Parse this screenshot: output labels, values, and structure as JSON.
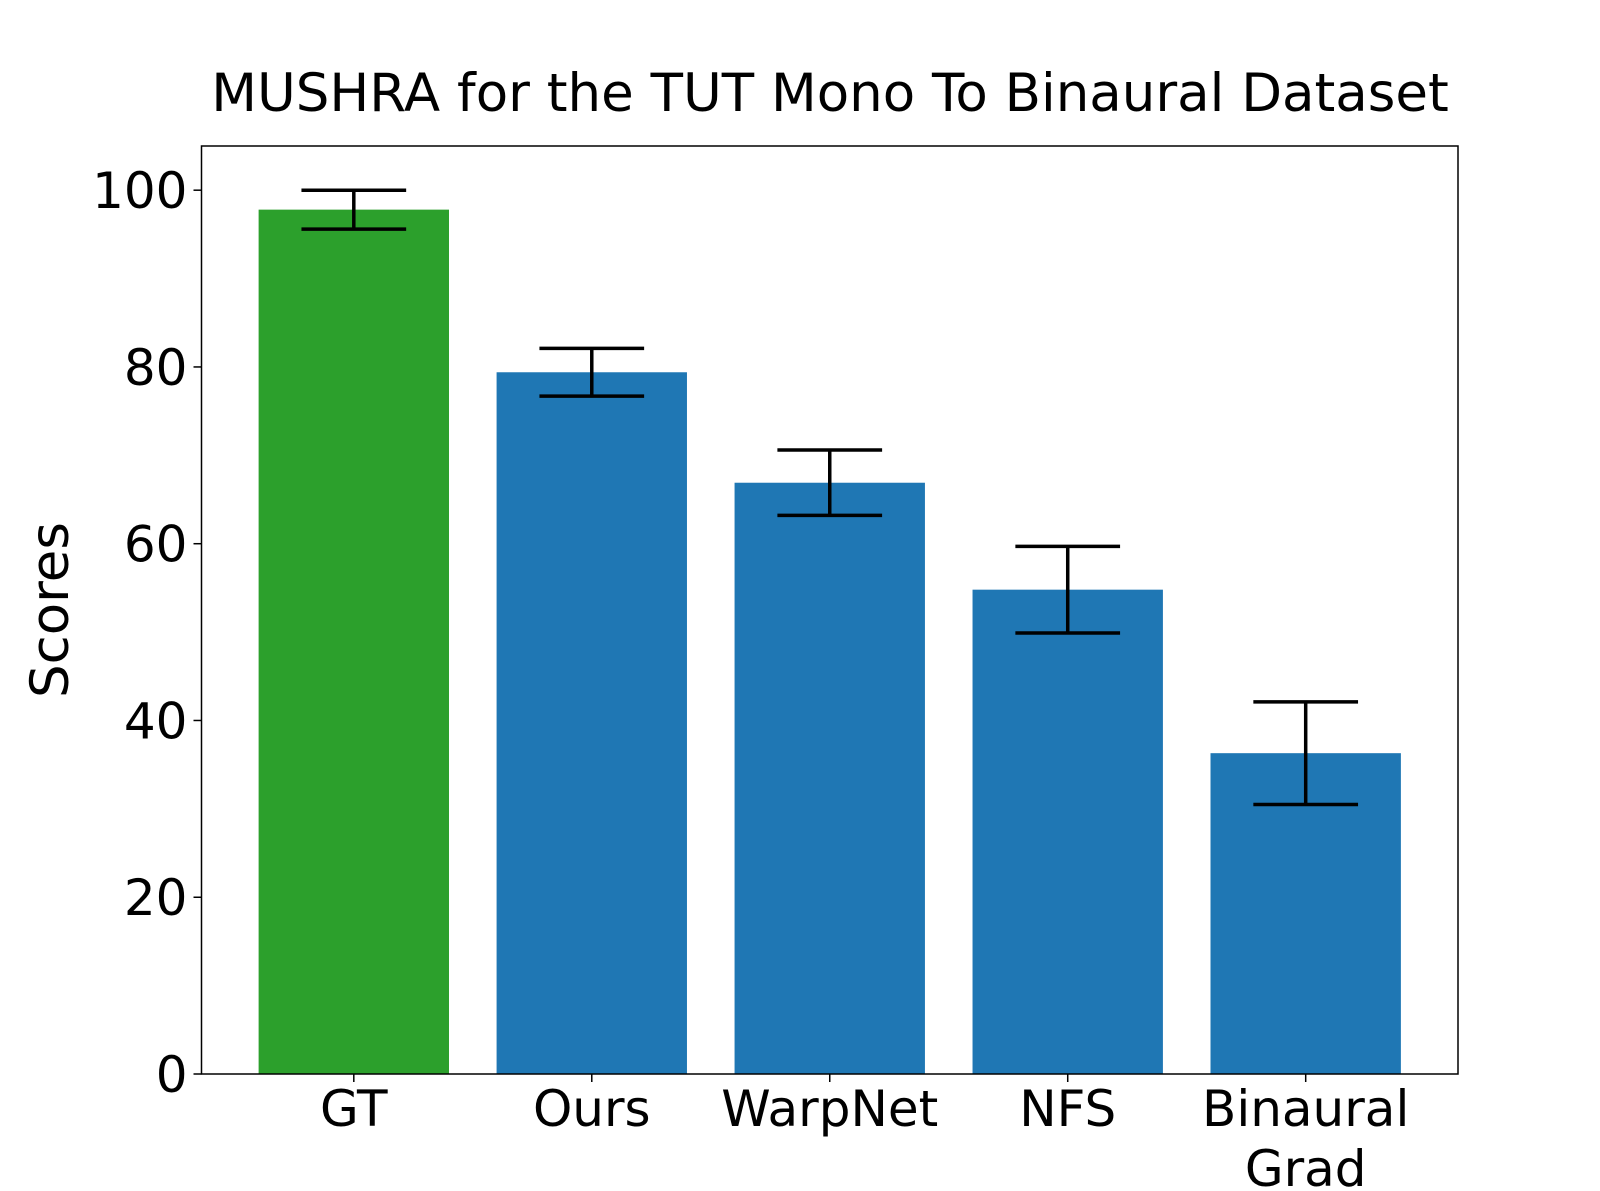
{
  "chart_data": {
    "type": "bar",
    "title": "MUSHRA for the TUT Mono To Binaural Dataset",
    "y_label": "Scores",
    "categories": [
      "GT",
      "Ours",
      "WarpNet",
      "NFS",
      "Binaural\nGrad"
    ],
    "values": [
      97.8,
      79.4,
      66.9,
      54.8,
      36.3
    ],
    "errors": [
      2.2,
      2.7,
      3.7,
      4.9,
      5.8
    ],
    "colors": [
      "#2ca02c",
      "#1f77b4",
      "#1f77b4",
      "#1f77b4",
      "#1f77b4"
    ],
    "error_color": "#000000",
    "ylim": [
      0,
      105
    ],
    "yticks": [
      0,
      20,
      40,
      60,
      80,
      100
    ],
    "grid": false
  }
}
